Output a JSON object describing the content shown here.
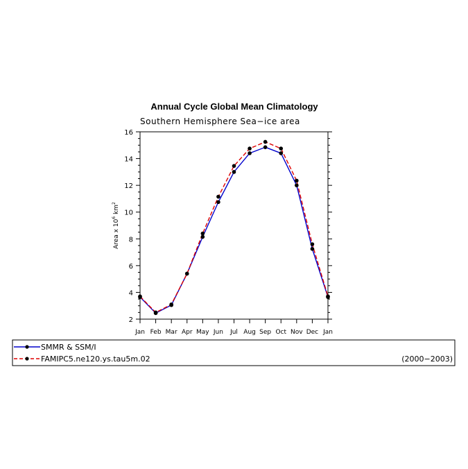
{
  "chart_data": {
    "type": "line",
    "title": "Annual Cycle Global Mean Climatology",
    "subtitle": "Southern Hemisphere Sea−ice area",
    "ylabel_prefix": "Area x 10",
    "ylabel_exp": "6",
    "ylabel_unit": " km",
    "ylabel_unit_exp": "2",
    "ylim": [
      2,
      16
    ],
    "yticks": [
      "2",
      "4",
      "6",
      "8",
      "10",
      "12",
      "14",
      "16"
    ],
    "categories": [
      "Jan",
      "Feb",
      "Mar",
      "Apr",
      "May",
      "Jun",
      "Jul",
      "Aug",
      "Sep",
      "Oct",
      "Nov",
      "Dec",
      "Jan"
    ],
    "series": [
      {
        "name": "SMMR & SSM/I",
        "color": "#0000cc",
        "dash": "solid",
        "values": [
          3.65,
          2.45,
          3.05,
          5.4,
          8.15,
          10.75,
          13.0,
          14.4,
          14.85,
          14.4,
          12.0,
          7.25,
          3.65
        ]
      },
      {
        "name": "FAMIPC5.ne120.ys.tau5m.02",
        "color": "#dd0000",
        "dash": "dashed",
        "values": [
          3.7,
          2.5,
          3.1,
          5.4,
          8.4,
          11.15,
          13.45,
          14.75,
          15.25,
          14.75,
          12.35,
          7.6,
          3.7
        ]
      }
    ],
    "legend_note": "(2000−2003)",
    "grid": false,
    "legend_position": "bottom"
  }
}
